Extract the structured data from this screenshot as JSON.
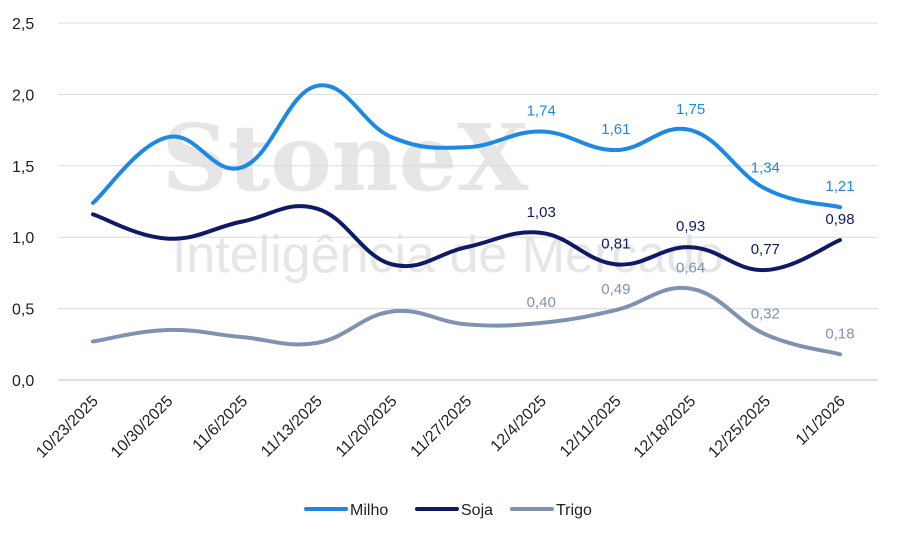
{
  "watermark": {
    "line1": "StoneX",
    "line2": "Inteligência de Mercado"
  },
  "chart_data": {
    "type": "line",
    "categories": [
      "10/23/2025",
      "10/30/2025",
      "11/6/2025",
      "11/13/2025",
      "11/20/2025",
      "11/27/2025",
      "12/4/2025",
      "12/11/2025",
      "12/18/2025",
      "12/25/2025",
      "1/1/2026"
    ],
    "y_ticks": [
      "0,0",
      "0,5",
      "1,0",
      "1,5",
      "2,0",
      "2,5"
    ],
    "ylim": [
      0,
      2.5
    ],
    "grid": true,
    "legend_position": "bottom",
    "series": [
      {
        "name": "Milho",
        "color": "#1e88e5",
        "values": [
          1.24,
          1.7,
          1.49,
          2.06,
          1.7,
          1.63,
          1.74,
          1.61,
          1.75,
          1.34,
          1.21
        ],
        "labels": [
          null,
          null,
          null,
          null,
          null,
          null,
          "1,74",
          "1,61",
          "1,75",
          "1,34",
          "1,21"
        ]
      },
      {
        "name": "Soja",
        "color": "#0f1a66",
        "values": [
          1.16,
          0.99,
          1.11,
          1.2,
          0.81,
          0.93,
          1.03,
          0.81,
          0.93,
          0.77,
          0.98
        ],
        "labels": [
          null,
          null,
          null,
          null,
          null,
          null,
          "1,03",
          "0,81",
          "0,93",
          "0,77",
          "0,98"
        ]
      },
      {
        "name": "Trigo",
        "color": "#7f93b0",
        "values": [
          0.27,
          0.35,
          0.3,
          0.26,
          0.48,
          0.39,
          0.4,
          0.49,
          0.64,
          0.32,
          0.18
        ],
        "labels": [
          null,
          null,
          null,
          null,
          null,
          null,
          "0,40",
          "0,49",
          "0,64",
          "0,32",
          "0,18"
        ]
      }
    ]
  }
}
